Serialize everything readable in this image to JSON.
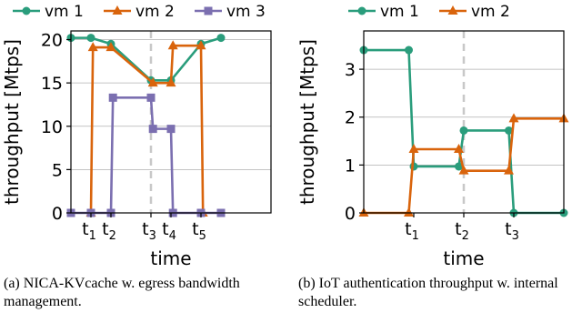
{
  "colors": {
    "vm1": "#2a9d7c",
    "vm2": "#d9640c",
    "vm3": "#7b6fb0",
    "grid": "#b0b0b0",
    "marker_line": "#c8c8c8"
  },
  "chart_data": [
    {
      "type": "line",
      "xlabel": "time",
      "ylabel": "throughput [Mtps]",
      "xlim": [
        0,
        10
      ],
      "ylim": [
        0,
        21
      ],
      "yticks": [
        0,
        5,
        10,
        15,
        20
      ],
      "xticks": [
        {
          "x": 1,
          "label": "t",
          "sub": "1"
        },
        {
          "x": 2,
          "label": "t",
          "sub": "2"
        },
        {
          "x": 4,
          "label": "t",
          "sub": "3"
        },
        {
          "x": 5,
          "label": "t",
          "sub": "4"
        },
        {
          "x": 6.5,
          "label": "t",
          "sub": "5"
        }
      ],
      "vline_x": 4,
      "legend": [
        "vm 1",
        "vm 2",
        "vm 3"
      ],
      "series": [
        {
          "name": "vm 1",
          "marker": "circle",
          "x": [
            0,
            1,
            2,
            4,
            5,
            6.5,
            7.5
          ],
          "y": [
            20.2,
            20.2,
            19.5,
            15.3,
            15.3,
            19.5,
            20.2
          ]
        },
        {
          "name": "vm 2",
          "marker": "triangle",
          "x": [
            1,
            1.1,
            2,
            4.1,
            5,
            5.1,
            6.5,
            6.6
          ],
          "y": [
            0,
            19.1,
            19.1,
            15.0,
            15.0,
            19.3,
            19.3,
            0
          ]
        },
        {
          "name": "vm 3",
          "marker": "square",
          "x": [
            0,
            1,
            2,
            2.1,
            4,
            4.1,
            5,
            5.1,
            6.5,
            7.5
          ],
          "y": [
            0,
            0,
            0,
            13.3,
            13.3,
            9.7,
            9.7,
            0,
            0,
            0
          ]
        }
      ]
    },
    {
      "type": "line",
      "xlabel": "time",
      "ylabel": "throughput [Mtps]",
      "xlim": [
        0,
        8
      ],
      "ylim": [
        0,
        3.8
      ],
      "yticks": [
        0,
        1,
        2,
        3
      ],
      "xticks": [
        {
          "x": 2,
          "label": "t",
          "sub": "1"
        },
        {
          "x": 4,
          "label": "t",
          "sub": "2"
        },
        {
          "x": 6,
          "label": "t",
          "sub": "3"
        }
      ],
      "vline_x": 4,
      "legend": [
        "vm 1",
        "vm 2"
      ],
      "series": [
        {
          "name": "vm 1",
          "marker": "circle",
          "x": [
            0,
            1.8,
            2,
            3.8,
            4,
            5.8,
            6,
            8
          ],
          "y": [
            3.4,
            3.4,
            0.97,
            0.97,
            1.72,
            1.72,
            0,
            0
          ]
        },
        {
          "name": "vm 2",
          "marker": "triangle",
          "x": [
            0,
            1.8,
            2,
            3.8,
            4,
            5.8,
            6,
            8
          ],
          "y": [
            0,
            0,
            1.33,
            1.33,
            0.88,
            0.88,
            1.97,
            1.97
          ]
        }
      ]
    }
  ],
  "captions": {
    "a": "(a) NICA-KVcache w. egress bandwidth management.",
    "b": "(b) IoT authentication throughput w. internal scheduler."
  }
}
